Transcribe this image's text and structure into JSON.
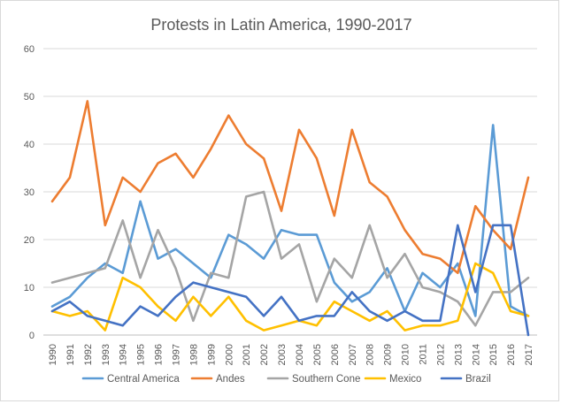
{
  "chart_data": {
    "type": "line",
    "title": "Protests in Latin America, 1990-2017",
    "xlabel": "",
    "ylabel": "",
    "ylim": [
      0,
      60
    ],
    "yticks": [
      "0",
      "10",
      "20",
      "30",
      "40",
      "50",
      "60"
    ],
    "grid": true,
    "legend_position": "bottom",
    "x": [
      "1990",
      "1991",
      "1992",
      "1993",
      "1994",
      "1995",
      "1996",
      "1997",
      "1998",
      "1999",
      "2000",
      "2001",
      "2002",
      "2003",
      "2004",
      "2005",
      "2006",
      "2007",
      "2008",
      "2009",
      "2010",
      "2011",
      "2012",
      "2013",
      "2014",
      "2015",
      "2016",
      "2017"
    ],
    "series": [
      {
        "name": "Central America",
        "color": "#5b9bd5",
        "values": [
          6,
          8,
          12,
          15,
          13,
          28,
          16,
          18,
          15,
          12,
          21,
          19,
          16,
          22,
          21,
          21,
          11,
          7,
          9,
          14,
          5,
          13,
          10,
          15,
          4,
          44,
          6,
          4
        ]
      },
      {
        "name": "Andes",
        "color": "#ed7d31",
        "values": [
          28,
          33,
          49,
          23,
          33,
          30,
          36,
          38,
          33,
          39,
          46,
          40,
          37,
          26,
          43,
          37,
          25,
          43,
          32,
          29,
          22,
          17,
          16,
          13,
          27,
          22,
          18,
          33
        ]
      },
      {
        "name": "Southern Cone",
        "color": "#a5a5a5",
        "values": [
          11,
          12,
          13,
          14,
          24,
          12,
          22,
          14,
          3,
          13,
          12,
          29,
          30,
          16,
          19,
          7,
          16,
          12,
          23,
          12,
          17,
          10,
          9,
          7,
          2,
          9,
          9,
          12
        ]
      },
      {
        "name": "Mexico",
        "color": "#ffc000",
        "values": [
          5,
          4,
          5,
          1,
          12,
          10,
          6,
          3,
          8,
          4,
          8,
          3,
          1,
          2,
          3,
          2,
          7,
          5,
          3,
          5,
          1,
          2,
          2,
          3,
          15,
          13,
          5,
          4
        ]
      },
      {
        "name": "Brazil",
        "color": "#4472c4",
        "values": [
          5,
          7,
          4,
          3,
          2,
          6,
          4,
          8,
          11,
          10,
          9,
          8,
          4,
          8,
          3,
          4,
          4,
          9,
          5,
          3,
          5,
          3,
          3,
          23,
          9,
          23,
          23,
          0
        ]
      }
    ]
  }
}
